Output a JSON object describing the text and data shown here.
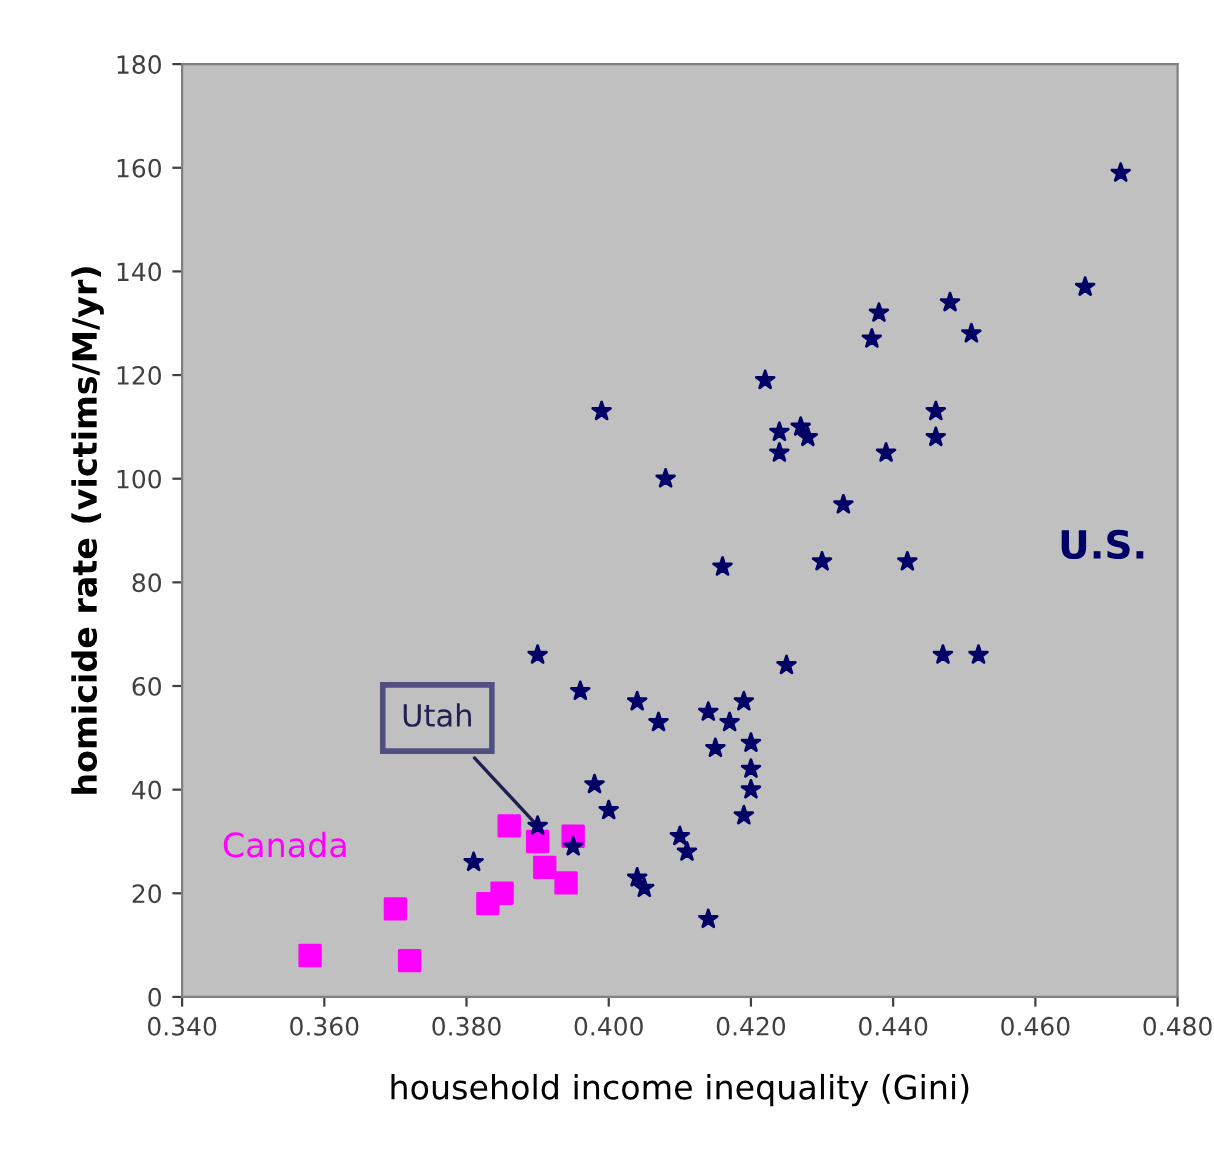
{
  "chart_data": {
    "type": "scatter",
    "xlabel": "household income inequality (Gini)",
    "ylabel": "homicide rate (victims/M/yr)",
    "xlim": [
      0.34,
      0.48
    ],
    "xticks": [
      {
        "value": 0.34,
        "label": "0.340"
      },
      {
        "value": 0.36,
        "label": "0.360"
      },
      {
        "value": 0.38,
        "label": "0.380"
      },
      {
        "value": 0.4,
        "label": "0.400"
      },
      {
        "value": 0.42,
        "label": "0.420"
      },
      {
        "value": 0.44,
        "label": "0.440"
      },
      {
        "value": 0.46,
        "label": "0.460"
      },
      {
        "value": 0.48,
        "label": "0.480"
      }
    ],
    "ylim": [
      0,
      180
    ],
    "yticks": [
      0,
      20,
      40,
      60,
      80,
      100,
      120,
      140,
      160,
      180
    ],
    "grid": false,
    "legend": false,
    "series": [
      {
        "name": "U.S.",
        "color": "#000066",
        "marker": "star",
        "x": [
          0.472,
          0.467,
          0.448,
          0.438,
          0.437,
          0.451,
          0.422,
          0.399,
          0.446,
          0.446,
          0.424,
          0.424,
          0.427,
          0.428,
          0.439,
          0.408,
          0.433,
          0.416,
          0.43,
          0.442,
          0.39,
          0.447,
          0.452,
          0.425,
          0.396,
          0.404,
          0.407,
          0.414,
          0.419,
          0.417,
          0.42,
          0.415,
          0.42,
          0.42,
          0.398,
          0.4,
          0.419,
          0.41,
          0.411,
          0.404,
          0.405,
          0.414,
          0.381,
          0.39,
          0.395
        ],
        "values": [
          159,
          137,
          134,
          132,
          127,
          128,
          119,
          113,
          113,
          108,
          109,
          105,
          110,
          108,
          105,
          100,
          95,
          83,
          84,
          84,
          66,
          66,
          66,
          64,
          59,
          57,
          53,
          55,
          57,
          53,
          49,
          48,
          44,
          40,
          41,
          36,
          35,
          31,
          28,
          23,
          21,
          15,
          26,
          33,
          29
        ]
      },
      {
        "name": "Canada",
        "color": "#ff00ff",
        "marker": "square",
        "x": [
          0.358,
          0.37,
          0.372,
          0.383,
          0.385,
          0.386,
          0.39,
          0.395,
          0.391,
          0.394
        ],
        "values": [
          8,
          17,
          7,
          18,
          20,
          33,
          30,
          31,
          25,
          22
        ]
      }
    ],
    "annotations": [
      {
        "text": "Utah",
        "x": 0.39,
        "y": 33
      }
    ]
  }
}
